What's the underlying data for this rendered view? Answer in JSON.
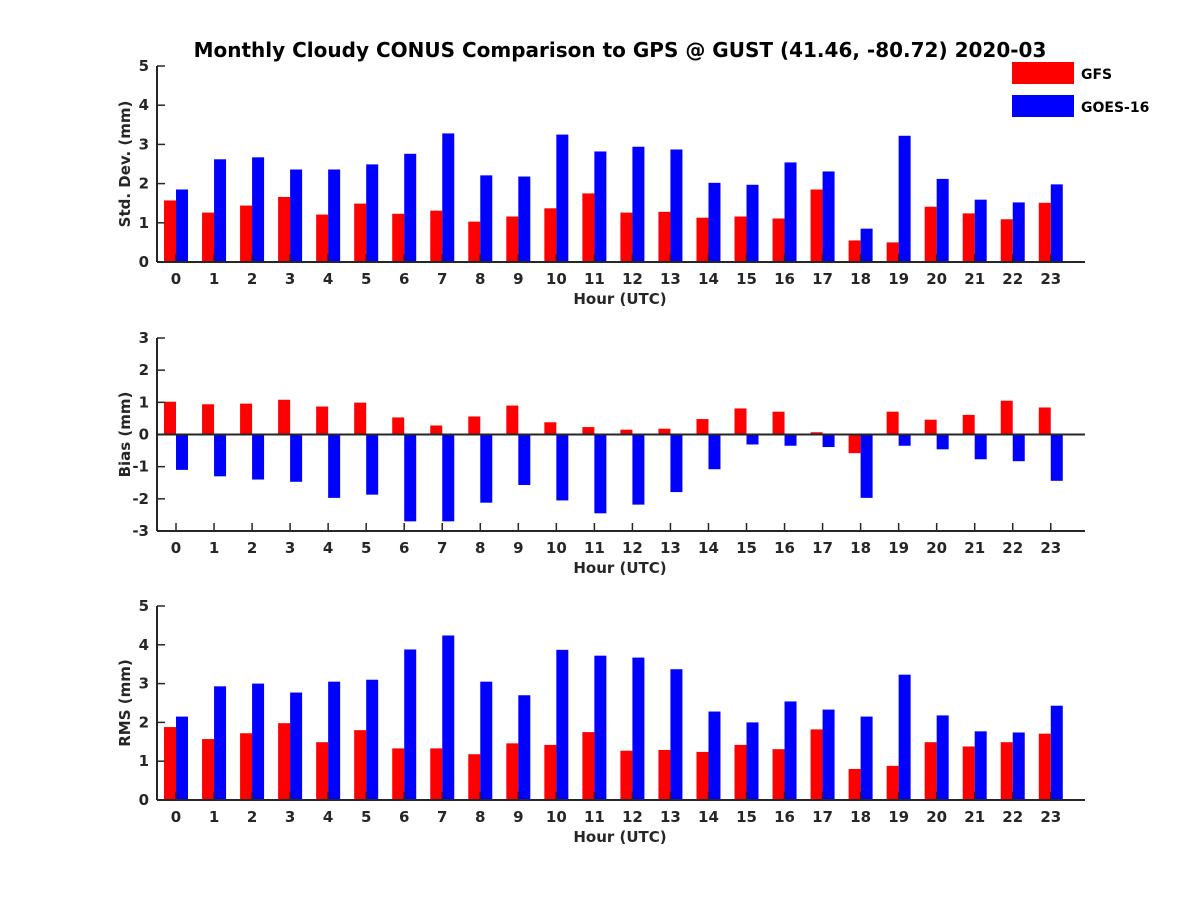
{
  "title": "Monthly Cloudy CONUS Comparison to GPS @ GUST (41.46, -80.72) 2020-03",
  "legend": {
    "placement": "top-right",
    "entries": [
      {
        "label": "GFS",
        "color": "#ff0000"
      },
      {
        "label": "GOES-16",
        "color": "#0000ff"
      }
    ]
  },
  "chart_data": [
    {
      "type": "bar",
      "xlabel": "Hour (UTC)",
      "ylabel": "Std. Dev. (mm)",
      "ylim": [
        0,
        5
      ],
      "yticks": [
        "0",
        "1",
        "2",
        "3",
        "4",
        "5"
      ],
      "categories": [
        "0",
        "1",
        "2",
        "3",
        "4",
        "5",
        "6",
        "7",
        "8",
        "9",
        "10",
        "11",
        "12",
        "13",
        "14",
        "15",
        "16",
        "17",
        "18",
        "19",
        "20",
        "21",
        "22",
        "23"
      ],
      "series": [
        {
          "name": "GFS",
          "color": "#ff0000",
          "values": [
            1.57,
            1.26,
            1.44,
            1.66,
            1.21,
            1.49,
            1.23,
            1.31,
            1.03,
            1.16,
            1.37,
            1.75,
            1.26,
            1.28,
            1.13,
            1.16,
            1.11,
            1.85,
            0.55,
            0.5,
            1.41,
            1.24,
            1.09,
            1.51
          ]
        },
        {
          "name": "GOES-16",
          "color": "#0000ff",
          "values": [
            1.85,
            2.62,
            2.67,
            2.36,
            2.36,
            2.49,
            2.76,
            3.28,
            2.21,
            2.18,
            3.25,
            2.82,
            2.94,
            2.87,
            2.02,
            1.97,
            2.54,
            2.31,
            0.85,
            3.22,
            2.12,
            1.59,
            1.52,
            1.98
          ]
        }
      ]
    },
    {
      "type": "bar",
      "xlabel": "Hour (UTC)",
      "ylabel": "Bias (mm)",
      "ylim": [
        -3,
        3
      ],
      "yticks": [
        "-3",
        "-2",
        "-1",
        "0",
        "1",
        "2",
        "3"
      ],
      "categories": [
        "0",
        "1",
        "2",
        "3",
        "4",
        "5",
        "6",
        "7",
        "8",
        "9",
        "10",
        "11",
        "12",
        "13",
        "14",
        "15",
        "16",
        "17",
        "18",
        "19",
        "20",
        "21",
        "22",
        "23"
      ],
      "series": [
        {
          "name": "GFS",
          "color": "#ff0000",
          "values": [
            1.02,
            0.94,
            0.96,
            1.08,
            0.87,
            0.99,
            0.53,
            0.28,
            0.56,
            0.9,
            0.38,
            0.23,
            0.15,
            0.18,
            0.48,
            0.81,
            0.71,
            0.07,
            -0.58,
            0.71,
            0.46,
            0.61,
            1.05,
            0.84
          ]
        },
        {
          "name": "GOES-16",
          "color": "#0000ff",
          "values": [
            -1.1,
            -1.3,
            -1.4,
            -1.47,
            -1.97,
            -1.87,
            -2.7,
            -2.7,
            -2.12,
            -1.57,
            -2.05,
            -2.45,
            -2.18,
            -1.79,
            -1.08,
            -0.31,
            -0.35,
            -0.39,
            -1.97,
            -0.35,
            -0.46,
            -0.77,
            -0.83,
            -1.44
          ]
        }
      ]
    },
    {
      "type": "bar",
      "xlabel": "Hour (UTC)",
      "ylabel": "RMS (mm)",
      "ylim": [
        0,
        5
      ],
      "yticks": [
        "0",
        "1",
        "2",
        "3",
        "4",
        "5"
      ],
      "categories": [
        "0",
        "1",
        "2",
        "3",
        "4",
        "5",
        "6",
        "7",
        "8",
        "9",
        "10",
        "11",
        "12",
        "13",
        "14",
        "15",
        "16",
        "17",
        "18",
        "19",
        "20",
        "21",
        "22",
        "23"
      ],
      "series": [
        {
          "name": "GFS",
          "color": "#ff0000",
          "values": [
            1.88,
            1.57,
            1.72,
            1.98,
            1.49,
            1.8,
            1.33,
            1.33,
            1.18,
            1.46,
            1.42,
            1.75,
            1.27,
            1.29,
            1.24,
            1.42,
            1.31,
            1.82,
            0.8,
            0.88,
            1.49,
            1.38,
            1.49,
            1.71
          ]
        },
        {
          "name": "GOES-16",
          "color": "#0000ff",
          "values": [
            2.15,
            2.93,
            3.0,
            2.77,
            3.05,
            3.1,
            3.88,
            4.24,
            3.05,
            2.7,
            3.87,
            3.72,
            3.67,
            3.37,
            2.28,
            2.0,
            2.54,
            2.33,
            2.15,
            3.23,
            2.18,
            1.77,
            1.74,
            2.43
          ]
        }
      ]
    }
  ]
}
